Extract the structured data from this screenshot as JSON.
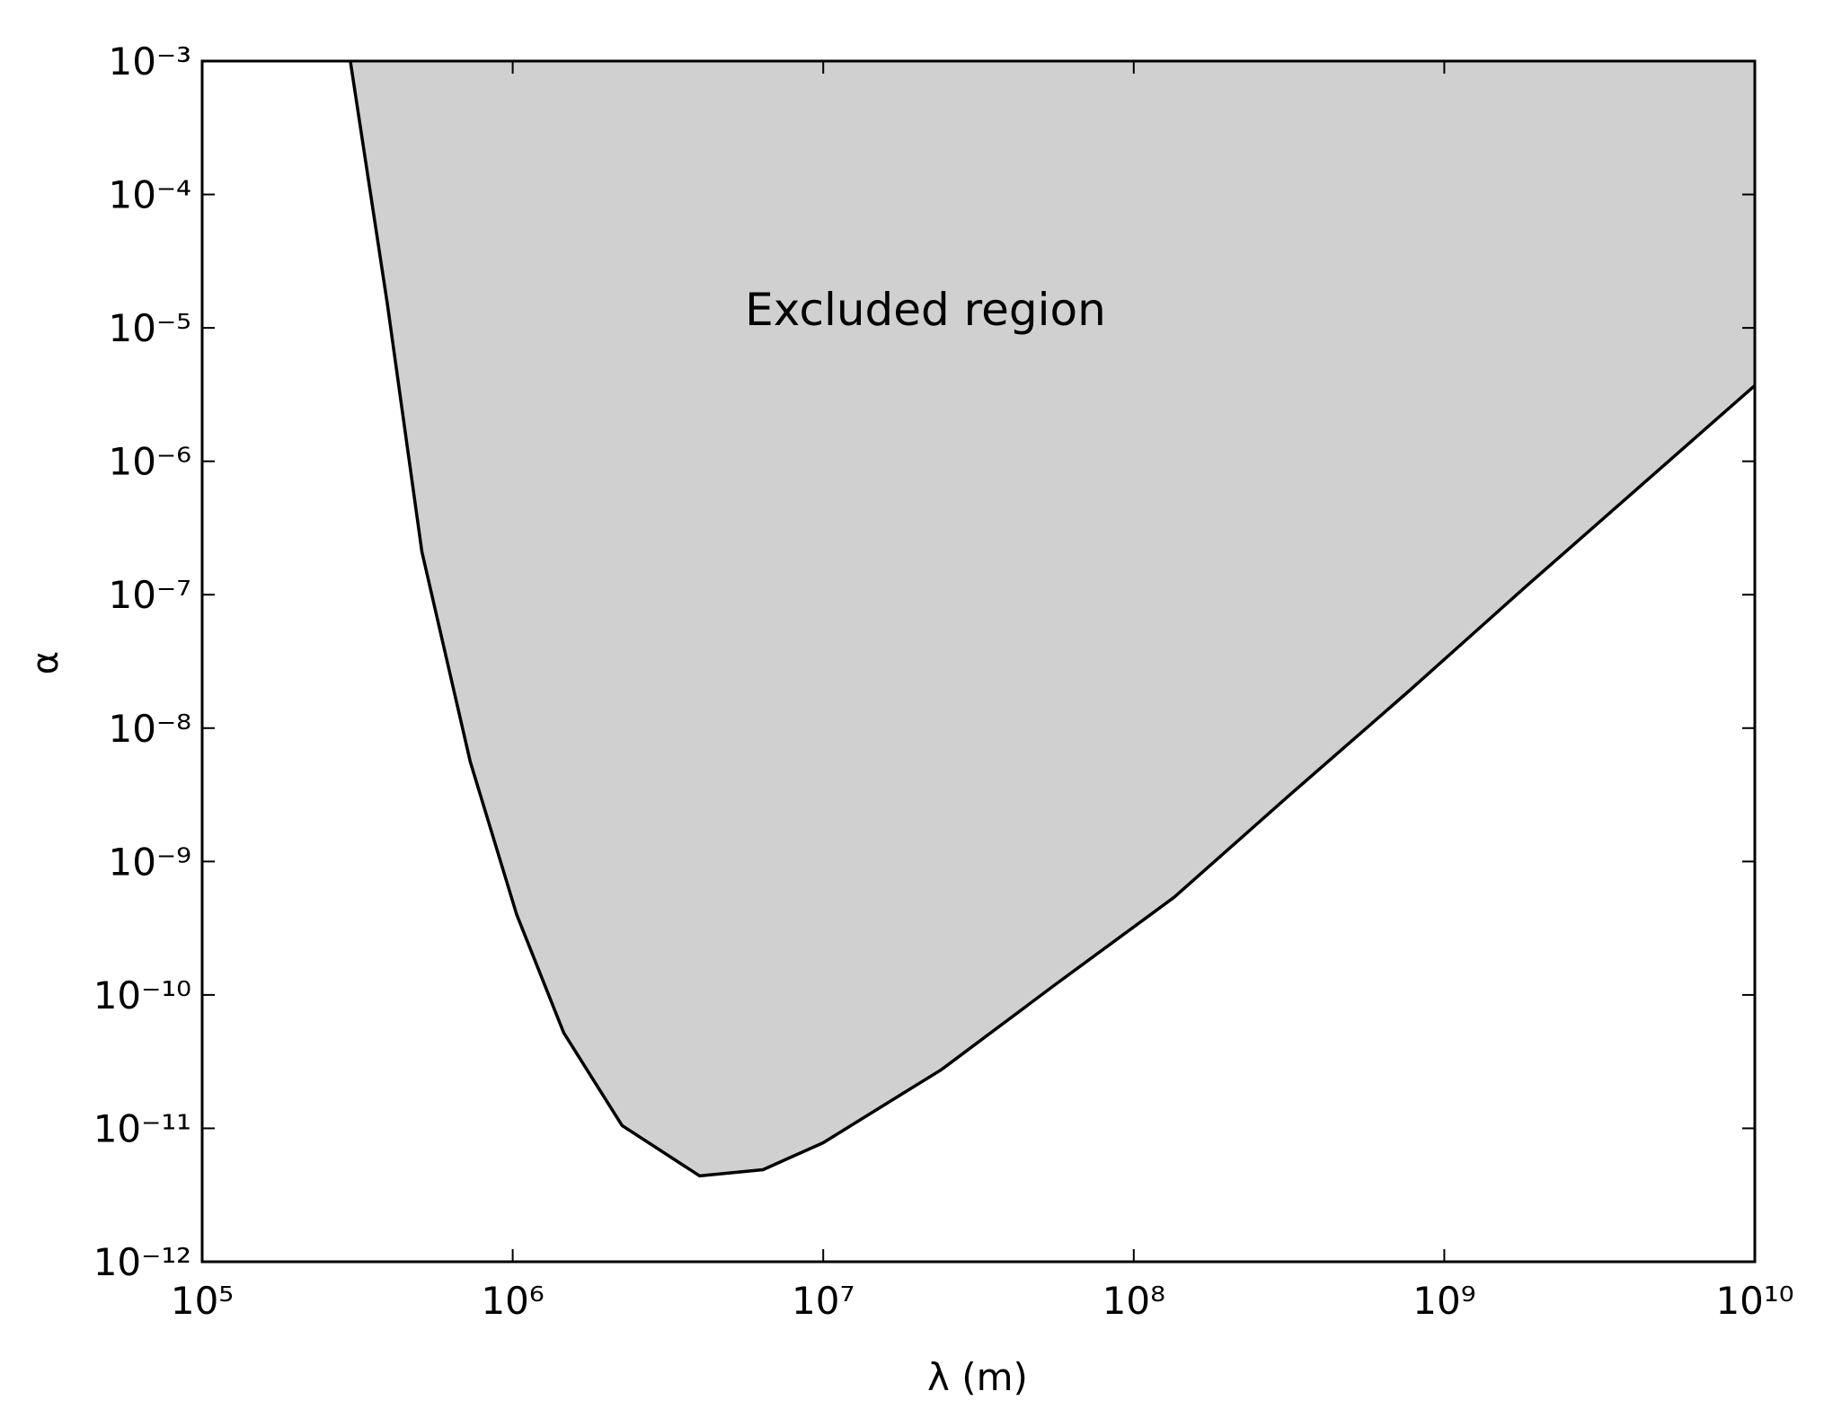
{
  "chart_data": {
    "type": "area",
    "x_label": "λ (m)",
    "y_label": "α",
    "annotation": "Excluded region",
    "x": [
      300000,
      395000,
      510000,
      730000,
      1030000,
      1460000,
      2250000,
      4000000,
      6400000,
      10000000,
      24000000,
      56000000,
      135000000,
      320000000,
      770000000,
      1830000000,
      4400000000,
      10000000000
    ],
    "values": [
      0.001,
      1.5e-05,
      2.1e-07,
      5.6e-09,
      4e-10,
      5.2e-11,
      1.05e-11,
      4.4e-12,
      4.9e-12,
      7.8e-12,
      2.75e-11,
      1.2e-10,
      5.4e-10,
      3.2e-09,
      1.9e-08,
      1.15e-07,
      6.9e-07,
      3.7e-06
    ],
    "line_color": "#000000",
    "fill_color": "#d0d0d0",
    "log_x": true,
    "log_y": true,
    "xlim": [
      100000,
      10000000000
    ],
    "ylim": [
      1e-12,
      0.001
    ],
    "xticks": [
      {
        "value": 100000,
        "label": "10⁵"
      },
      {
        "value": 1000000,
        "label": "10⁶"
      },
      {
        "value": 10000000,
        "label": "10⁷"
      },
      {
        "value": 100000000,
        "label": "10⁸"
      },
      {
        "value": 1000000000,
        "label": "10⁹"
      },
      {
        "value": 10000000000,
        "label": "10¹⁰"
      }
    ],
    "yticks": [
      {
        "value": 1e-12,
        "label": "10⁻¹²"
      },
      {
        "value": 1e-11,
        "label": "10⁻¹¹"
      },
      {
        "value": 1e-10,
        "label": "10⁻¹⁰"
      },
      {
        "value": 1e-09,
        "label": "10⁻⁹"
      },
      {
        "value": 1e-08,
        "label": "10⁻⁸"
      },
      {
        "value": 1e-07,
        "label": "10⁻⁷"
      },
      {
        "value": 1e-06,
        "label": "10⁻⁶"
      },
      {
        "value": 1e-05,
        "label": "10⁻⁵"
      },
      {
        "value": 0.0001,
        "label": "10⁻⁴"
      },
      {
        "value": 0.001,
        "label": "10⁻³"
      }
    ]
  }
}
